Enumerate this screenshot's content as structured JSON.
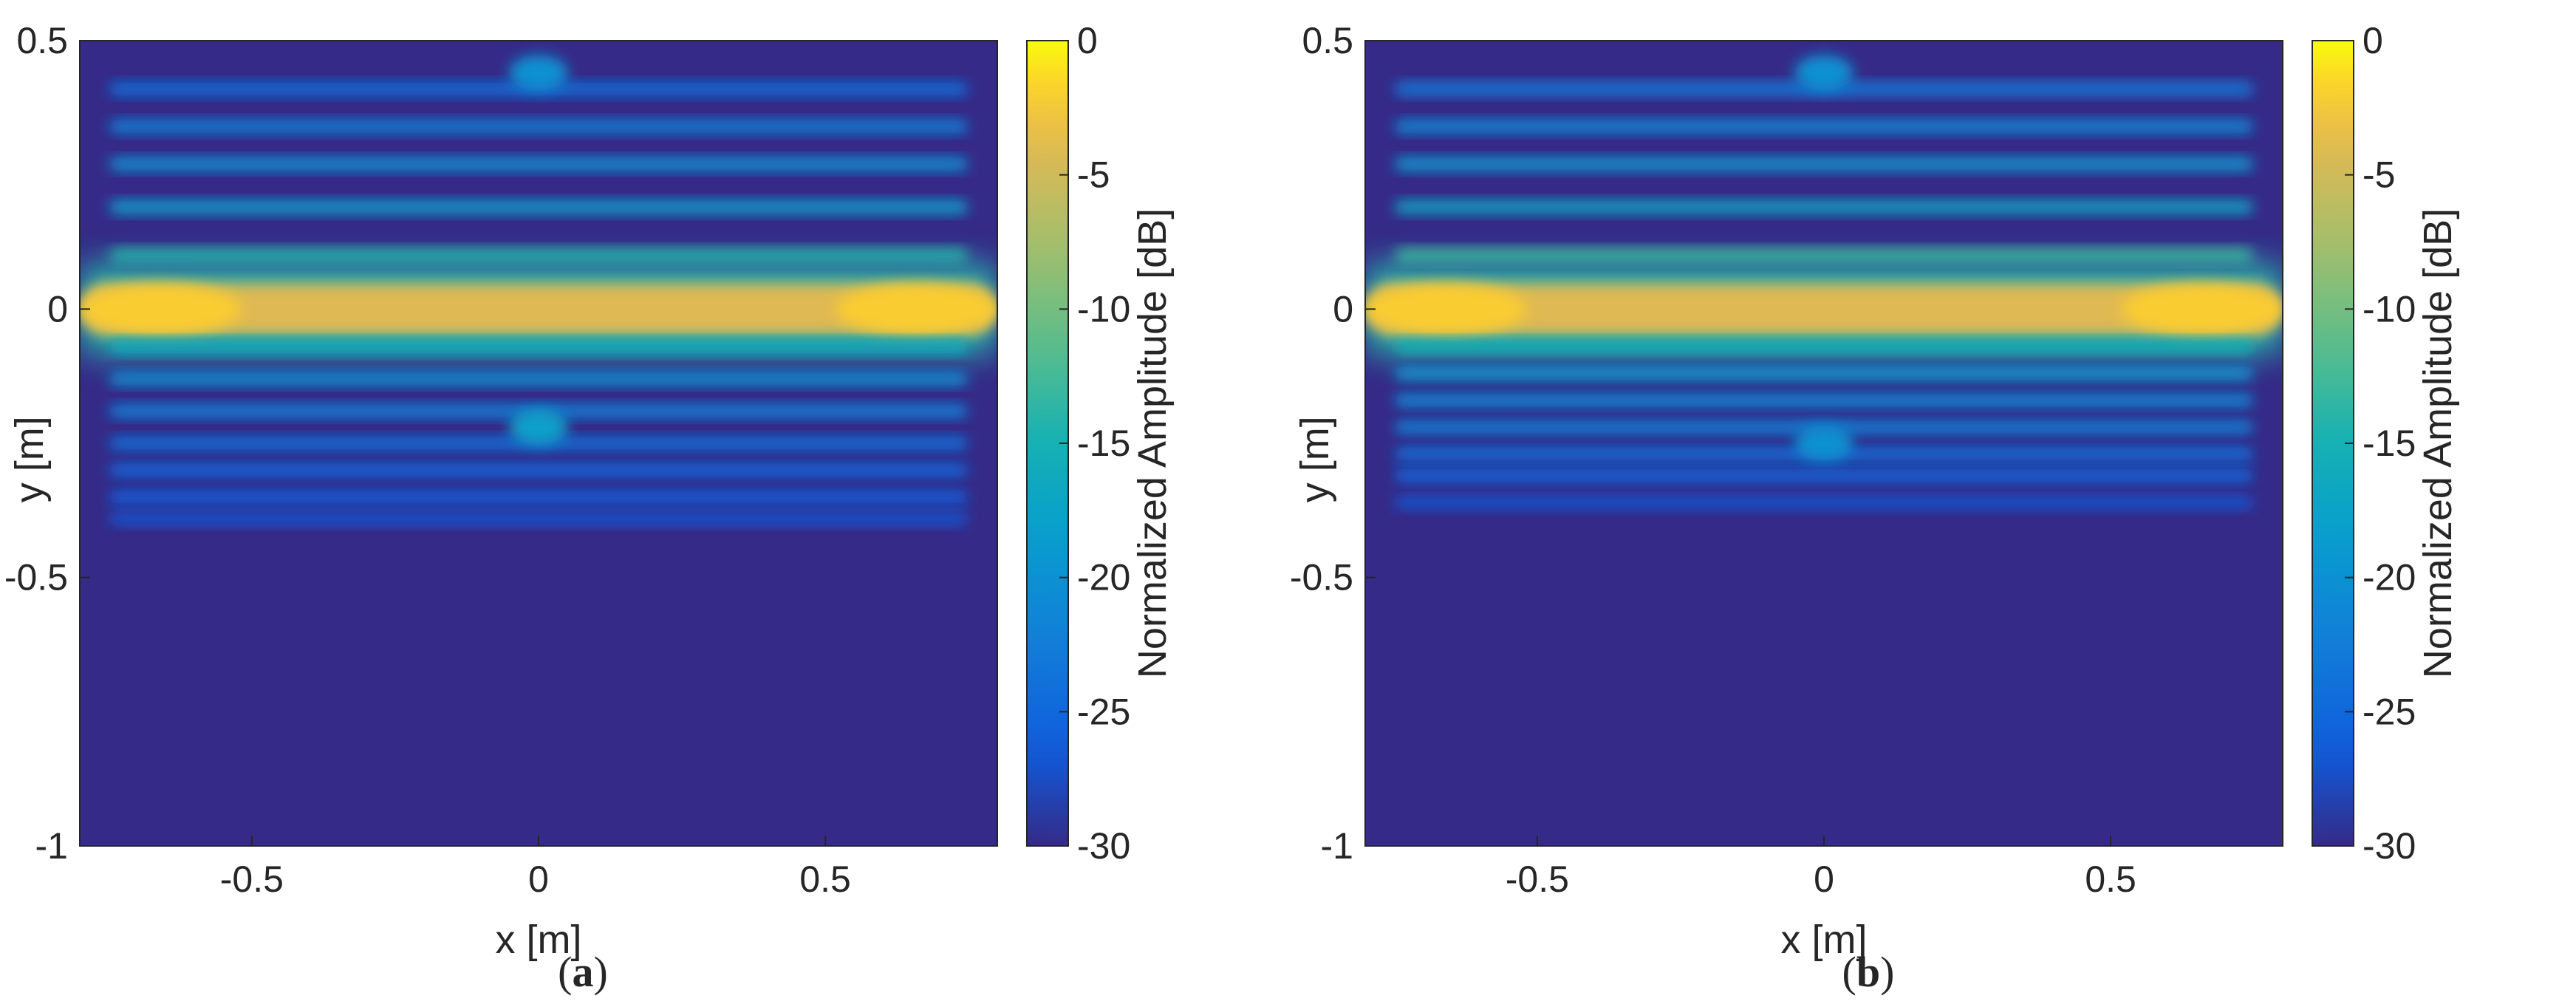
{
  "chart_data": [
    {
      "type": "heatmap",
      "caption_letter": "a",
      "xlabel": "x [m]",
      "ylabel": "y [m]",
      "colorbar_label": "Normalized Amplitude [dB]",
      "xlim": [
        -0.8,
        0.8
      ],
      "ylim": [
        -1,
        0.5
      ],
      "xticks": [
        -0.5,
        0,
        0.5
      ],
      "xtick_labels": [
        "-0.5",
        "0",
        "0.5"
      ],
      "yticks": [
        0.5,
        0,
        -0.5,
        -1
      ],
      "ytick_labels": [
        "0.5",
        "0",
        "-0.5",
        "-1"
      ],
      "clim": [
        -30,
        0
      ],
      "cticks": [
        0,
        -5,
        -10,
        -15,
        -20,
        -25,
        -30
      ],
      "ctick_labels": [
        "0",
        "-5",
        "-10",
        "-15",
        "-20",
        "-25",
        "-30"
      ],
      "colormap": "parula",
      "features": [
        {
          "kind": "band",
          "y": 0.0,
          "level_db": -4,
          "x_range": [
            -0.8,
            0.8
          ]
        },
        {
          "kind": "hotspot",
          "x": -0.66,
          "y": 0.0,
          "level_db": -2
        },
        {
          "kind": "hotspot",
          "x": 0.66,
          "y": 0.0,
          "level_db": -2
        },
        {
          "kind": "band",
          "y": 0.1,
          "level_db": -14
        },
        {
          "kind": "band",
          "y": 0.19,
          "level_db": -18
        },
        {
          "kind": "band",
          "y": 0.27,
          "level_db": -20
        },
        {
          "kind": "band",
          "y": 0.34,
          "level_db": -22
        },
        {
          "kind": "band",
          "y": 0.41,
          "level_db": -24
        },
        {
          "kind": "band",
          "y": -0.07,
          "level_db": -16
        },
        {
          "kind": "band",
          "y": -0.13,
          "level_db": -20
        },
        {
          "kind": "band",
          "y": -0.19,
          "level_db": -22
        },
        {
          "kind": "band",
          "y": -0.25,
          "level_db": -24
        },
        {
          "kind": "band",
          "y": -0.3,
          "level_db": -25
        },
        {
          "kind": "band",
          "y": -0.35,
          "level_db": -26
        },
        {
          "kind": "band",
          "y": -0.39,
          "level_db": -27
        },
        {
          "kind": "hotspot",
          "x": 0.0,
          "y": -0.22,
          "level_db": -18
        },
        {
          "kind": "hotspot",
          "x": 0.0,
          "y": 0.44,
          "level_db": -20
        }
      ]
    },
    {
      "type": "heatmap",
      "caption_letter": "b",
      "xlabel": "x [m]",
      "ylabel": "y [m]",
      "colorbar_label": "Normalized Amplitude [dB]",
      "xlim": [
        -0.8,
        0.8
      ],
      "ylim": [
        -1,
        0.5
      ],
      "xticks": [
        -0.5,
        0,
        0.5
      ],
      "xtick_labels": [
        "-0.5",
        "0",
        "0.5"
      ],
      "yticks": [
        0.5,
        0,
        -0.5,
        -1
      ],
      "ytick_labels": [
        "0.5",
        "0",
        "-0.5",
        "-1"
      ],
      "clim": [
        -30,
        0
      ],
      "cticks": [
        0,
        -5,
        -10,
        -15,
        -20,
        -25,
        -30
      ],
      "ctick_labels": [
        "0",
        "-5",
        "-10",
        "-15",
        "-20",
        "-25",
        "-30"
      ],
      "colormap": "parula",
      "features": [
        {
          "kind": "band",
          "y": 0.0,
          "level_db": -4,
          "x_range": [
            -0.8,
            0.8
          ]
        },
        {
          "kind": "hotspot",
          "x": -0.66,
          "y": 0.0,
          "level_db": -2
        },
        {
          "kind": "hotspot",
          "x": 0.66,
          "y": 0.0,
          "level_db": -2
        },
        {
          "kind": "band",
          "y": 0.1,
          "level_db": -13
        },
        {
          "kind": "band",
          "y": 0.19,
          "level_db": -17
        },
        {
          "kind": "band",
          "y": 0.27,
          "level_db": -19
        },
        {
          "kind": "band",
          "y": 0.34,
          "level_db": -21
        },
        {
          "kind": "band",
          "y": 0.41,
          "level_db": -23
        },
        {
          "kind": "band",
          "y": -0.07,
          "level_db": -15
        },
        {
          "kind": "band",
          "y": -0.12,
          "level_db": -19
        },
        {
          "kind": "band",
          "y": -0.17,
          "level_db": -21
        },
        {
          "kind": "band",
          "y": -0.22,
          "level_db": -22
        },
        {
          "kind": "band",
          "y": -0.27,
          "level_db": -24
        },
        {
          "kind": "band",
          "y": -0.31,
          "level_db": -25
        },
        {
          "kind": "band",
          "y": -0.36,
          "level_db": -27
        },
        {
          "kind": "hotspot",
          "x": 0.0,
          "y": -0.25,
          "level_db": -20
        },
        {
          "kind": "hotspot",
          "x": 0.0,
          "y": 0.44,
          "level_db": -20
        }
      ]
    }
  ]
}
